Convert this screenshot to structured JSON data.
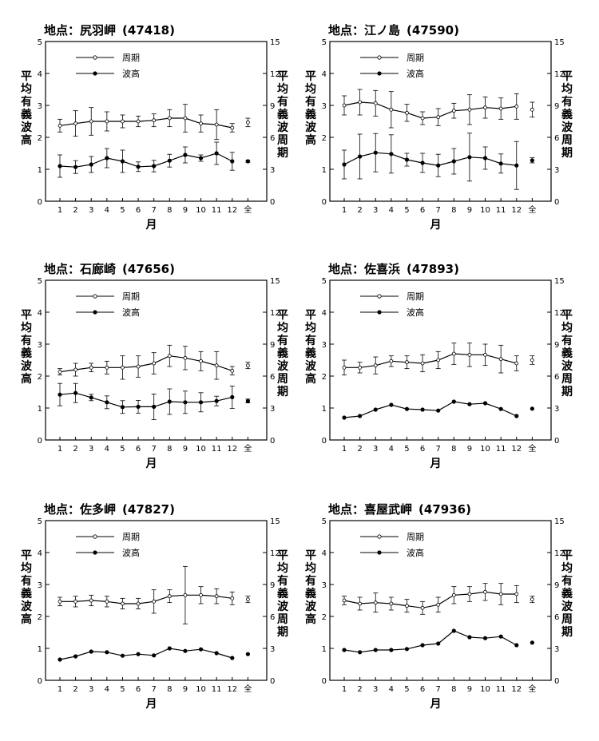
{
  "figure": {
    "station_prefix": "地点：",
    "xlabel": "月",
    "ylabel_left": "平均有義波高",
    "ylabel_right": "平均有義波周期",
    "categories": [
      "1",
      "2",
      "3",
      "4",
      "5",
      "6",
      "7",
      "8",
      "9",
      "10",
      "11",
      "12",
      "全"
    ],
    "y_left_ticks": [
      "0",
      "1",
      "2",
      "3",
      "4",
      "5"
    ],
    "y_right_ticks": [
      "0",
      "3",
      "6",
      "9",
      "12",
      "15"
    ],
    "legend_period": "周期",
    "legend_height": "波高"
  },
  "chart_data": [
    {
      "type": "line",
      "title": "尻羽岬 (47418)",
      "station": "尻羽岬",
      "code": "(47418)",
      "categories": [
        "1",
        "2",
        "3",
        "4",
        "5",
        "6",
        "7",
        "8",
        "9",
        "10",
        "11",
        "12",
        "全"
      ],
      "ylim_left": [
        0,
        5
      ],
      "ylim_right": [
        0,
        15
      ],
      "series": [
        {
          "name": "周期",
          "axis": "right",
          "values": [
            7.1,
            7.3,
            7.5,
            7.5,
            7.5,
            7.5,
            7.6,
            7.8,
            7.8,
            7.3,
            7.2,
            6.9,
            7.4
          ],
          "err": [
            0.6,
            1.2,
            1.3,
            0.9,
            0.6,
            0.5,
            0.6,
            0.8,
            1.3,
            0.8,
            1.4,
            0.4,
            0.4
          ]
        },
        {
          "name": "波高",
          "axis": "left",
          "values": [
            1.1,
            1.07,
            1.15,
            1.35,
            1.25,
            1.08,
            1.1,
            1.27,
            1.45,
            1.35,
            1.5,
            1.25,
            1.25
          ],
          "err": [
            0.35,
            0.2,
            0.25,
            0.3,
            0.35,
            0.15,
            0.18,
            0.2,
            0.25,
            0.1,
            0.35,
            0.28,
            0.03
          ]
        }
      ]
    },
    {
      "type": "line",
      "title": "江ノ島 (47590)",
      "station": "江ノ島",
      "code": "(47590)",
      "categories": [
        "1",
        "2",
        "3",
        "4",
        "5",
        "6",
        "7",
        "8",
        "9",
        "10",
        "11",
        "12",
        "全"
      ],
      "ylim_left": [
        0,
        5
      ],
      "ylim_right": [
        0,
        15
      ],
      "series": [
        {
          "name": "周期",
          "axis": "right",
          "values": [
            9.0,
            9.3,
            9.2,
            8.6,
            8.3,
            7.8,
            7.9,
            8.5,
            8.6,
            8.8,
            8.7,
            8.9,
            8.6
          ],
          "err": [
            0.9,
            1.2,
            1.2,
            1.7,
            0.8,
            0.6,
            0.8,
            0.7,
            1.4,
            1.0,
            1.0,
            1.2,
            0.7
          ]
        },
        {
          "name": "波高",
          "axis": "left",
          "values": [
            1.15,
            1.4,
            1.52,
            1.48,
            1.3,
            1.2,
            1.12,
            1.25,
            1.38,
            1.35,
            1.18,
            1.12,
            1.28
          ],
          "err": [
            0.45,
            0.7,
            0.6,
            0.6,
            0.2,
            0.3,
            0.35,
            0.4,
            0.75,
            0.35,
            0.3,
            0.75,
            0.08
          ]
        }
      ]
    },
    {
      "type": "line",
      "title": "石廊崎 (47656)",
      "station": "石廊崎",
      "code": "(47656)",
      "categories": [
        "1",
        "2",
        "3",
        "4",
        "5",
        "6",
        "7",
        "8",
        "9",
        "10",
        "11",
        "12",
        "全"
      ],
      "ylim_left": [
        0,
        5
      ],
      "ylim_right": [
        0,
        15
      ],
      "series": [
        {
          "name": "周期",
          "axis": "right",
          "values": [
            6.4,
            6.6,
            6.8,
            6.8,
            6.8,
            6.9,
            7.2,
            7.9,
            7.7,
            7.4,
            7.0,
            6.5,
            7.0
          ],
          "err": [
            0.3,
            0.6,
            0.4,
            0.6,
            1.1,
            1.0,
            1.0,
            1.0,
            1.1,
            0.9,
            1.3,
            0.4,
            0.3
          ]
        },
        {
          "name": "波高",
          "axis": "left",
          "values": [
            1.42,
            1.47,
            1.33,
            1.18,
            1.03,
            1.04,
            1.04,
            1.2,
            1.18,
            1.18,
            1.22,
            1.34,
            1.22
          ],
          "err": [
            0.35,
            0.3,
            0.1,
            0.2,
            0.2,
            0.2,
            0.4,
            0.4,
            0.35,
            0.3,
            0.15,
            0.35,
            0.06
          ]
        }
      ]
    },
    {
      "type": "line",
      "title": "佐喜浜 (47893)",
      "station": "佐喜浜",
      "code": "(47893)",
      "categories": [
        "1",
        "2",
        "3",
        "4",
        "5",
        "6",
        "7",
        "8",
        "9",
        "10",
        "11",
        "12",
        "全"
      ],
      "ylim_left": [
        0,
        5
      ],
      "ylim_right": [
        0,
        15
      ],
      "series": [
        {
          "name": "周期",
          "axis": "right",
          "values": [
            6.8,
            6.8,
            7.0,
            7.4,
            7.3,
            7.2,
            7.5,
            8.1,
            8.0,
            8.0,
            7.6,
            7.2,
            7.5
          ],
          "err": [
            0.7,
            0.5,
            0.8,
            0.5,
            0.6,
            0.8,
            0.8,
            1.0,
            1.1,
            1.0,
            1.3,
            0.7,
            0.4
          ]
        },
        {
          "name": "波高",
          "axis": "left",
          "values": [
            0.7,
            0.75,
            0.95,
            1.1,
            0.97,
            0.95,
            0.92,
            1.2,
            1.12,
            1.15,
            0.97,
            0.75,
            0.98
          ]
        }
      ]
    },
    {
      "type": "line",
      "title": "佐多岬 (47827)",
      "station": "佐多岬",
      "code": "(47827)",
      "categories": [
        "1",
        "2",
        "3",
        "4",
        "5",
        "6",
        "7",
        "8",
        "9",
        "10",
        "11",
        "12",
        "全"
      ],
      "ylim_left": [
        0,
        5
      ],
      "ylim_right": [
        0,
        15
      ],
      "series": [
        {
          "name": "周期",
          "axis": "right",
          "values": [
            7.4,
            7.4,
            7.5,
            7.4,
            7.2,
            7.2,
            7.4,
            7.9,
            8.0,
            8.0,
            7.9,
            7.7,
            7.6
          ],
          "err": [
            0.4,
            0.5,
            0.5,
            0.5,
            0.5,
            0.5,
            1.1,
            0.6,
            2.7,
            0.8,
            0.7,
            0.6,
            0.3
          ]
        },
        {
          "name": "波高",
          "axis": "left",
          "values": [
            0.65,
            0.75,
            0.9,
            0.88,
            0.77,
            0.82,
            0.78,
            1.0,
            0.92,
            0.97,
            0.85,
            0.7,
            0.82
          ]
        }
      ]
    },
    {
      "type": "line",
      "title": "喜屋武岬 (47936)",
      "station": "喜屋武岬",
      "code": "(47936)",
      "categories": [
        "1",
        "2",
        "3",
        "4",
        "5",
        "6",
        "7",
        "8",
        "9",
        "10",
        "11",
        "12",
        "全"
      ],
      "ylim_left": [
        0,
        5
      ],
      "ylim_right": [
        0,
        15
      ],
      "series": [
        {
          "name": "周期",
          "axis": "right",
          "values": [
            7.5,
            7.2,
            7.3,
            7.2,
            7.0,
            6.8,
            7.1,
            8.0,
            8.1,
            8.3,
            8.1,
            8.1,
            7.6
          ],
          "err": [
            0.4,
            0.6,
            0.9,
            0.6,
            0.6,
            0.6,
            0.7,
            0.8,
            0.7,
            0.8,
            1.0,
            0.8,
            0.3
          ]
        },
        {
          "name": "波高",
          "axis": "left",
          "values": [
            0.95,
            0.88,
            0.95,
            0.95,
            0.98,
            1.1,
            1.15,
            1.55,
            1.35,
            1.32,
            1.37,
            1.1,
            1.18
          ]
        }
      ]
    }
  ]
}
